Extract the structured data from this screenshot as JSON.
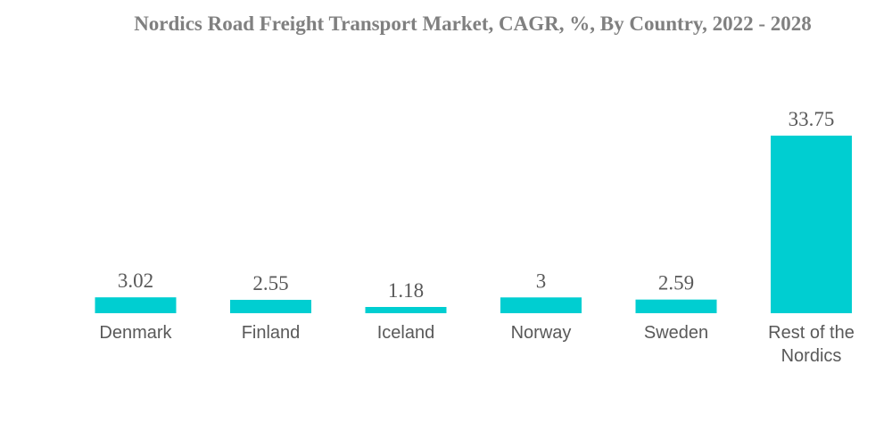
{
  "chart_data": {
    "type": "bar",
    "title": "Nordics Road Freight Transport Market, CAGR, %, By Country, 2022 - 2028",
    "categories": [
      "Denmark",
      "Finland",
      "Iceland",
      "Norway",
      "Sweden",
      "Rest of the Nordics"
    ],
    "category_lines": [
      [
        "Denmark"
      ],
      [
        "Finland"
      ],
      [
        "Iceland"
      ],
      [
        "Norway"
      ],
      [
        "Sweden"
      ],
      [
        "Rest of the",
        "Nordics"
      ]
    ],
    "values": [
      3.02,
      2.55,
      1.18,
      3,
      2.59,
      33.75
    ],
    "value_labels": [
      "3.02",
      "2.55",
      "1.18",
      "3",
      "2.59",
      "33.75"
    ],
    "xlabel": "",
    "ylabel": "",
    "ylim": [
      0,
      33.75
    ],
    "grid": false,
    "legend": "none",
    "bar_color": "#00CED1"
  }
}
